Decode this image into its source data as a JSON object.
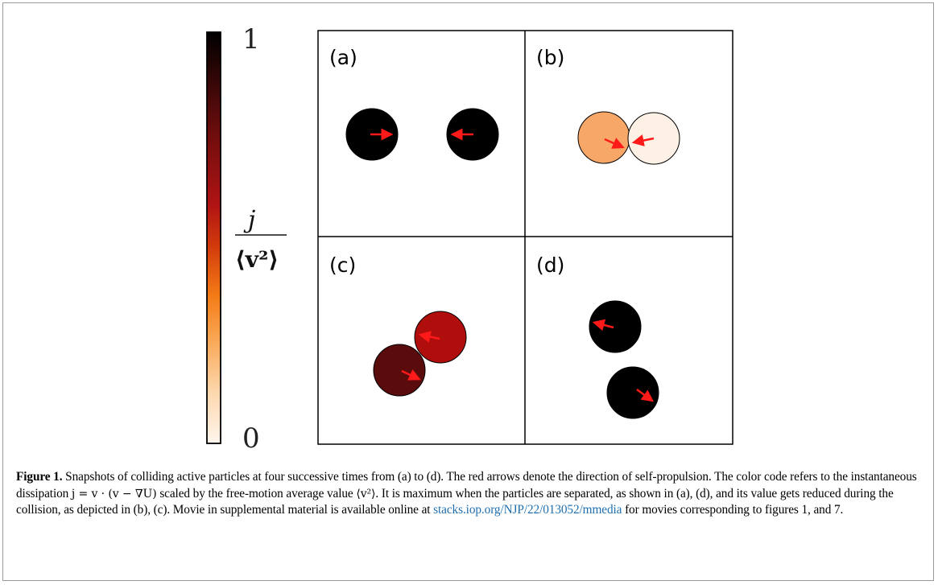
{
  "colorbar": {
    "max_label": "1",
    "min_label": "0",
    "label_numerator": "j",
    "label_denominator": "⟨v²⟩",
    "colors": [
      "#fff5ec",
      "#fdd9b0",
      "#f9a450",
      "#f47b16",
      "#d23a0c",
      "#b01414",
      "#7c0e0e",
      "#3f0808",
      "#000000"
    ]
  },
  "panels": [
    {
      "label": "(a)",
      "particles": [
        {
          "color": "#000000",
          "arrow": "right"
        },
        {
          "color": "#000000",
          "arrow": "left"
        }
      ]
    },
    {
      "label": "(b)",
      "particles": [
        {
          "color": "#f7a868",
          "arrow": "down-right"
        },
        {
          "color": "#fdf0e4",
          "arrow": "left"
        }
      ]
    },
    {
      "label": "(c)",
      "particles": [
        {
          "color": "#b00d0d",
          "arrow": "left"
        },
        {
          "color": "#5a0c0c",
          "arrow": "down-right"
        }
      ]
    },
    {
      "label": "(d)",
      "particles": [
        {
          "color": "#000000",
          "arrow": "left"
        },
        {
          "color": "#000000",
          "arrow": "down-right"
        }
      ]
    }
  ],
  "arrow_color": "#ff1a1a",
  "caption": {
    "label": "Figure 1.",
    "part1": " Snapshots of colliding active particles at four successive times from (a) to (d). The red arrows denote the direction of self-propulsion. The color code refers to the instantaneous dissipation ",
    "formula1": "j = v · (v − ∇U)",
    "part2": " scaled by the free-motion average value ",
    "formula2": "⟨v²⟩",
    "part3": ". It is maximum when the particles are separated, as shown in (a), (d), and its value gets reduced during the collision, as depicted in (b), (c). Movie in supplemental material is available online at ",
    "link": "stacks.iop.org/NJP/22/013052/mmedia",
    "part4": " for movies corresponding to figures 1, and 7."
  }
}
